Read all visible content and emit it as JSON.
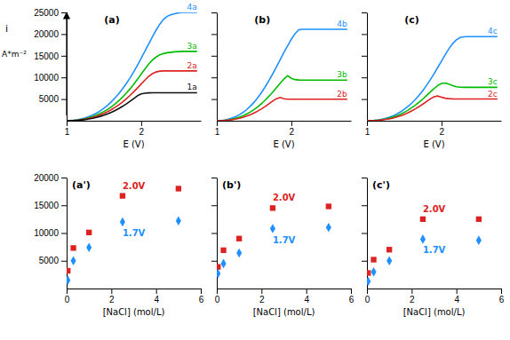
{
  "chart_data": [
    {
      "type": "line",
      "title": "(a)",
      "xlabel": "E  (V)",
      "ylabel": "i",
      "annotations": [
        "A*m⁻²"
      ],
      "x": [
        1.0,
        1.05,
        1.1,
        1.15,
        1.2,
        1.25,
        1.3,
        1.35,
        1.4,
        1.45,
        1.5,
        1.55,
        1.6,
        1.65,
        1.7,
        1.75,
        1.8,
        1.85,
        1.9,
        1.95,
        2.0,
        2.05,
        2.1,
        2.15,
        2.2,
        2.25,
        2.3,
        2.35,
        2.4,
        2.45,
        2.5,
        2.55,
        2.6,
        2.65,
        2.7,
        2.75
      ],
      "series": [
        {
          "name": "4a",
          "color": "#1E90FF",
          "values": [
            0,
            50,
            130,
            250,
            430,
            660,
            960,
            1320,
            1750,
            2270,
            2880,
            3580,
            4380,
            5270,
            6260,
            7360,
            8560,
            9870,
            11280,
            12800,
            14400,
            16050,
            17700,
            19350,
            20900,
            22300,
            23400,
            24100,
            24500,
            24700,
            24900,
            25000,
            25000,
            25000,
            25000,
            25000
          ]
        },
        {
          "name": "3a",
          "color": "#00BB00",
          "values": [
            0,
            40,
            100,
            190,
            320,
            490,
            710,
            980,
            1300,
            1680,
            2120,
            2630,
            3220,
            3880,
            4620,
            5450,
            6360,
            7350,
            8420,
            9560,
            10770,
            11950,
            13050,
            14000,
            14700,
            15200,
            15500,
            15700,
            15800,
            15900,
            15950,
            16000,
            16000,
            16000,
            16000,
            16000
          ]
        },
        {
          "name": "2a",
          "color": "#DD2222",
          "values": [
            0,
            30,
            80,
            150,
            250,
            390,
            560,
            770,
            1030,
            1330,
            1680,
            2090,
            2560,
            3090,
            3680,
            4340,
            5060,
            5840,
            6680,
            7560,
            8480,
            9380,
            10200,
            10850,
            11250,
            11450,
            11500,
            11500,
            11500,
            11500,
            11500,
            11500,
            11500,
            11500,
            11500,
            11500
          ]
        },
        {
          "name": "1a",
          "color": "#111111",
          "values": [
            0,
            20,
            55,
            110,
            185,
            285,
            415,
            575,
            770,
            1000,
            1270,
            1580,
            1940,
            2350,
            2810,
            3320,
            3880,
            4480,
            5110,
            5760,
            6200,
            6350,
            6420,
            6450,
            6460,
            6465,
            6465,
            6465,
            6465,
            6465,
            6465,
            6465,
            6465,
            6465,
            6465,
            6465
          ]
        }
      ],
      "xlim": [
        1.0,
        2.8
      ],
      "xticks": [
        1,
        2
      ],
      "ylim": [
        0,
        25000
      ],
      "yticks": [
        5000,
        10000,
        15000,
        20000,
        25000
      ]
    },
    {
      "type": "line",
      "title": "(b)",
      "xlabel": "E  (V)",
      "tick_labels": "x",
      "x": [
        1.0,
        1.05,
        1.1,
        1.15,
        1.2,
        1.25,
        1.3,
        1.35,
        1.4,
        1.45,
        1.5,
        1.55,
        1.6,
        1.65,
        1.7,
        1.75,
        1.8,
        1.85,
        1.9,
        1.95,
        2.0,
        2.05,
        2.1,
        2.15,
        2.2,
        2.25,
        2.3,
        2.35,
        2.4,
        2.45,
        2.5,
        2.55,
        2.6,
        2.65,
        2.7,
        2.75
      ],
      "series": [
        {
          "name": "4b",
          "color": "#1E90FF",
          "values": [
            0,
            60,
            170,
            340,
            590,
            920,
            1350,
            1890,
            2560,
            3350,
            4270,
            5330,
            6520,
            7840,
            9280,
            10810,
            12430,
            14080,
            15730,
            17310,
            18810,
            20100,
            21000,
            21100,
            21100,
            21100,
            21100,
            21100,
            21100,
            21100,
            21100,
            21100,
            21100,
            21100,
            21100,
            21100
          ]
        },
        {
          "name": "3b",
          "color": "#00BB00",
          "values": [
            0,
            30,
            90,
            190,
            340,
            540,
            800,
            1130,
            1540,
            2020,
            2580,
            3220,
            3950,
            4760,
            5650,
            6610,
            7620,
            8650,
            9620,
            10400,
            9800,
            9500,
            9400,
            9380,
            9370,
            9370,
            9370,
            9370,
            9370,
            9370,
            9370,
            9370,
            9370,
            9370,
            9370,
            9370
          ]
        },
        {
          "name": "2b",
          "color": "#DD2222",
          "values": [
            0,
            20,
            60,
            130,
            230,
            370,
            550,
            780,
            1060,
            1390,
            1780,
            2230,
            2740,
            3300,
            3910,
            4550,
            5090,
            5360,
            5080,
            4980,
            4980,
            4980,
            4980,
            4980,
            4980,
            4980,
            4980,
            4980,
            4980,
            4980,
            4980,
            4980,
            4980,
            4980,
            4980,
            4980
          ]
        }
      ],
      "xlim": [
        1.0,
        2.8
      ],
      "xticks": [
        1,
        2
      ],
      "ylim": [
        0,
        25000
      ],
      "yticks": [
        5000,
        10000,
        15000,
        20000,
        25000
      ]
    },
    {
      "type": "line",
      "title": "(c)",
      "xlabel": "E  (V)",
      "tick_labels": "x",
      "x": [
        1.0,
        1.05,
        1.1,
        1.15,
        1.2,
        1.25,
        1.3,
        1.35,
        1.4,
        1.45,
        1.5,
        1.55,
        1.6,
        1.65,
        1.7,
        1.75,
        1.8,
        1.85,
        1.9,
        1.95,
        2.0,
        2.05,
        2.1,
        2.15,
        2.2,
        2.25,
        2.3,
        2.35,
        2.4,
        2.45,
        2.5,
        2.55,
        2.6,
        2.65,
        2.7,
        2.75
      ],
      "series": [
        {
          "name": "4c",
          "color": "#1E90FF",
          "values": [
            0,
            40,
            110,
            210,
            360,
            560,
            820,
            1140,
            1550,
            2040,
            2620,
            3290,
            4050,
            4920,
            5900,
            6980,
            8170,
            9460,
            10840,
            12290,
            13770,
            15240,
            16620,
            17810,
            18680,
            19200,
            19380,
            19420,
            19430,
            19430,
            19430,
            19430,
            19430,
            19430,
            19430,
            19430
          ]
        },
        {
          "name": "3c",
          "color": "#00BB00",
          "values": [
            0,
            25,
            70,
            145,
            255,
            405,
            600,
            845,
            1145,
            1505,
            1930,
            2420,
            2980,
            3600,
            4280,
            5020,
            5810,
            6630,
            7430,
            8130,
            8600,
            8700,
            8450,
            8100,
            7850,
            7750,
            7720,
            7710,
            7710,
            7710,
            7710,
            7710,
            7710,
            7710,
            7710,
            7710
          ]
        },
        {
          "name": "2c",
          "color": "#DD2222",
          "values": [
            0,
            18,
            50,
            105,
            185,
            295,
            440,
            625,
            855,
            1130,
            1455,
            1830,
            2260,
            2740,
            3270,
            3840,
            4440,
            5040,
            5520,
            5700,
            5450,
            5200,
            5100,
            5050,
            5030,
            5020,
            5020,
            5020,
            5020,
            5020,
            5020,
            5020,
            5020,
            5020,
            5020,
            5020
          ]
        }
      ],
      "xlim": [
        1.0,
        2.8
      ],
      "xticks": [
        1,
        2
      ],
      "ylim": [
        0,
        25000
      ],
      "yticks": [
        5000,
        10000,
        15000,
        20000,
        25000
      ]
    },
    {
      "type": "scatter",
      "title": "(a')",
      "xlabel": "[NaCl]  (mol/L)",
      "x": [
        0.05,
        0.3,
        1.0,
        2.5,
        5.0
      ],
      "series": [
        {
          "name": "2.0V",
          "color": "#DD2222",
          "marker": "square",
          "values": [
            3200,
            7300,
            10100,
            16700,
            18000
          ]
        },
        {
          "name": "1.7V",
          "color": "#1E90FF",
          "marker": "diamond",
          "values": [
            1500,
            5000,
            7400,
            12000,
            12200
          ]
        }
      ],
      "xlim": [
        0,
        6
      ],
      "xticks": [
        0,
        2,
        4,
        6
      ],
      "ylim": [
        0,
        20000
      ],
      "yticks": [
        5000,
        10000,
        15000,
        20000
      ]
    },
    {
      "type": "scatter",
      "title": "(b')",
      "xlabel": "[NaCl]  (mol/L)",
      "tick_labels": "x",
      "x": [
        0.05,
        0.3,
        1.0,
        2.5,
        5.0
      ],
      "series": [
        {
          "name": "2.0V",
          "color": "#DD2222",
          "marker": "square",
          "values": [
            3900,
            6900,
            9000,
            14500,
            14800
          ]
        },
        {
          "name": "1.7V",
          "color": "#1E90FF",
          "marker": "diamond",
          "values": [
            2700,
            4500,
            6400,
            10800,
            11000
          ]
        }
      ],
      "xlim": [
        0,
        6
      ],
      "xticks": [
        0,
        2,
        4,
        6
      ],
      "ylim": [
        0,
        20000
      ],
      "yticks": [
        5000,
        10000,
        15000,
        20000
      ]
    },
    {
      "type": "scatter",
      "title": "(c')",
      "xlabel": "[NaCl]  (mol/L)",
      "tick_labels": "x",
      "x": [
        0.05,
        0.3,
        1.0,
        2.5,
        5.0
      ],
      "series": [
        {
          "name": "2.0V",
          "color": "#DD2222",
          "marker": "square",
          "values": [
            2800,
            5200,
            7000,
            12500,
            12500
          ]
        },
        {
          "name": "1.7V",
          "color": "#1E90FF",
          "marker": "diamond",
          "values": [
            1300,
            3000,
            5000,
            8900,
            8700
          ]
        }
      ],
      "xlim": [
        0,
        6
      ],
      "xticks": [
        0,
        2,
        4,
        6
      ],
      "ylim": [
        0,
        20000
      ],
      "yticks": [
        5000,
        10000,
        15000,
        20000
      ]
    }
  ]
}
